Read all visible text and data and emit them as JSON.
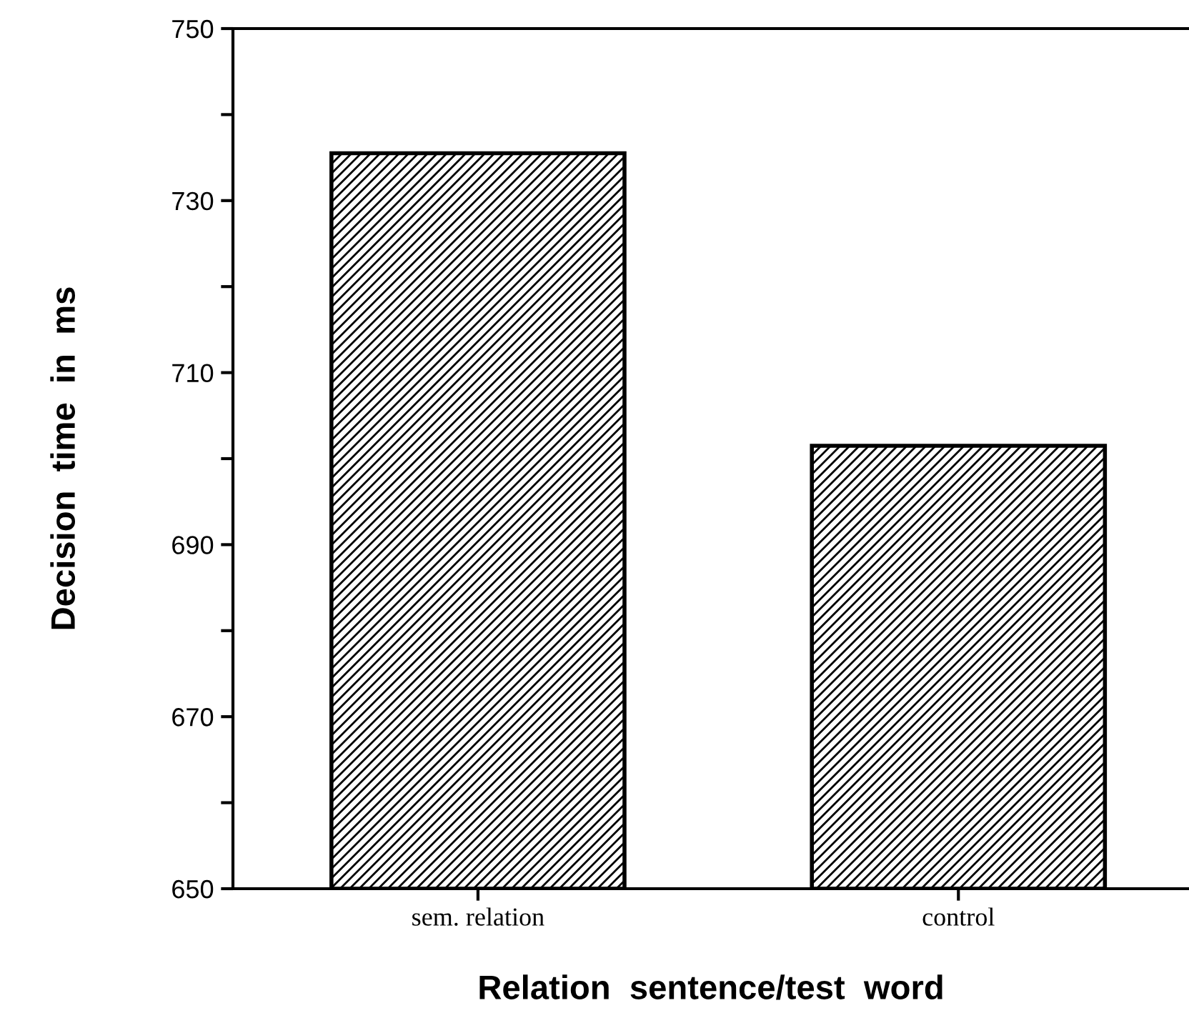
{
  "chart_data": {
    "type": "bar",
    "xlabel": "Relation  sentence/test  word",
    "ylabel": "Decision  time  in  ms",
    "categories": [
      "sem. relation",
      "control"
    ],
    "values": [
      735.5,
      701.5
    ],
    "color": "#000000",
    "ylim": [
      650,
      750
    ],
    "yticks": [
      650,
      {
        "value": 660,
        "label": null
      },
      670,
      {
        "value": 680,
        "label": null
      },
      690,
      {
        "value": 700,
        "label": null
      },
      710,
      {
        "value": 720,
        "label": null
      },
      730,
      {
        "value": 740,
        "label": null
      },
      750
    ],
    "grid": false,
    "legend": false
  }
}
